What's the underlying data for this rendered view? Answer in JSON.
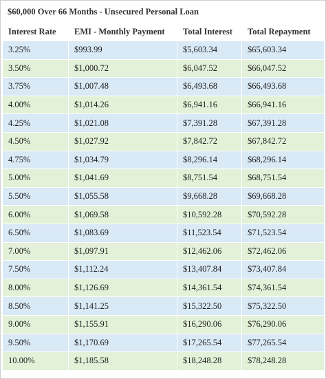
{
  "title": "$60,000 Over 66 Months - Unsecured Personal Loan",
  "table": {
    "header": [
      "Interest Rate",
      "EMI - Monthly Payment",
      "Total Interest",
      "Total Repayment"
    ],
    "rows": [
      [
        "3.25%",
        "$993.99",
        "$5,603.34",
        "$65,603.34"
      ],
      [
        "3.50%",
        "$1,000.72",
        "$6,047.52",
        "$66,047.52"
      ],
      [
        "3.75%",
        "$1,007.48",
        "$6,493.68",
        "$66,493.68"
      ],
      [
        "4.00%",
        "$1,014.26",
        "$6,941.16",
        "$66,941.16"
      ],
      [
        "4.25%",
        "$1,021.08",
        "$7,391.28",
        "$67,391.28"
      ],
      [
        "4.50%",
        "$1,027.92",
        "$7,842.72",
        "$67,842.72"
      ],
      [
        "4.75%",
        "$1,034.79",
        "$8,296.14",
        "$68,296.14"
      ],
      [
        "5.00%",
        "$1,041.69",
        "$8,751.54",
        "$68,751.54"
      ],
      [
        "5.50%",
        "$1,055.58",
        "$9,668.28",
        "$69,668.28"
      ],
      [
        "6.00%",
        "$1,069.58",
        "$10,592.28",
        "$70,592.28"
      ],
      [
        "6.50%",
        "$1,083.69",
        "$11,523.54",
        "$71,523.54"
      ],
      [
        "7.00%",
        "$1,097.91",
        "$12,462.06",
        "$72,462.06"
      ],
      [
        "7.50%",
        "$1,112.24",
        "$13,407.84",
        "$73,407.84"
      ],
      [
        "8.00%",
        "$1,126.69",
        "$14,361.54",
        "$74,361.54"
      ],
      [
        "8.50%",
        "$1,141.25",
        "$15,322.50",
        "$75,322.50"
      ],
      [
        "9.00%",
        "$1,155.91",
        "$16,290.06",
        "$76,290.06"
      ],
      [
        "9.50%",
        "$1,170.69",
        "$17,265.54",
        "$77,265.54"
      ],
      [
        "10.00%",
        "$1,185.58",
        "$18,248.28",
        "$78,248.28"
      ]
    ]
  }
}
